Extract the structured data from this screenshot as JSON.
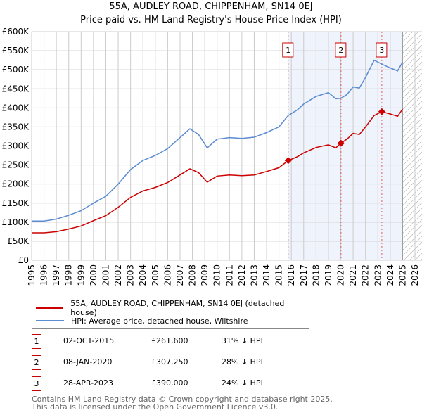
{
  "chart_data": {
    "type": "line",
    "title": "55A, AUDLEY ROAD, CHIPPENHAM, SN14 0EJ",
    "subtitle": "Price paid vs. HM Land Registry's House Price Index (HPI)",
    "xlim": [
      1995,
      2026
    ],
    "ylim": [
      0,
      600000
    ],
    "x_ticks": [
      "1995",
      "1996",
      "1997",
      "1998",
      "1999",
      "2000",
      "2001",
      "2002",
      "2003",
      "2004",
      "2005",
      "2006",
      "2007",
      "2008",
      "2009",
      "2010",
      "2011",
      "2012",
      "2013",
      "2014",
      "2015",
      "2016",
      "2017",
      "2018",
      "2019",
      "2020",
      "2021",
      "2022",
      "2023",
      "2024",
      "2025",
      "2026"
    ],
    "y_ticks": [
      {
        "v": 0,
        "l": "£0"
      },
      {
        "v": 50000,
        "l": "£50K"
      },
      {
        "v": 100000,
        "l": "£100K"
      },
      {
        "v": 150000,
        "l": "£150K"
      },
      {
        "v": 200000,
        "l": "£200K"
      },
      {
        "v": 250000,
        "l": "£250K"
      },
      {
        "v": 300000,
        "l": "£300K"
      },
      {
        "v": 350000,
        "l": "£350K"
      },
      {
        "v": 400000,
        "l": "£400K"
      },
      {
        "v": 450000,
        "l": "£450K"
      },
      {
        "v": 500000,
        "l": "£500K"
      },
      {
        "v": 550000,
        "l": "£550K"
      },
      {
        "v": 600000,
        "l": "£600K"
      }
    ],
    "grid": true,
    "series": [
      {
        "name": "HPI: Average price, detached house, Wiltshire",
        "color": "#5b8bd0",
        "x": [
          1995,
          1996,
          1997,
          1998,
          1999,
          2000,
          2001,
          2002,
          2003,
          2004,
          2005,
          2006,
          2007,
          2007.8,
          2008.5,
          2009.2,
          2010,
          2011,
          2012,
          2013,
          2014,
          2015,
          2015.75,
          2016.5,
          2017,
          2018,
          2019,
          2019.6,
          2020,
          2020.5,
          2021,
          2021.5,
          2022,
          2022.7,
          2023.3,
          2024,
          2024.6,
          2025
        ],
        "y": [
          103000,
          103000,
          108000,
          118000,
          130000,
          150000,
          168000,
          200000,
          238000,
          262000,
          275000,
          293000,
          322000,
          345000,
          330000,
          295000,
          318000,
          322000,
          320000,
          323000,
          335000,
          350000,
          380000,
          395000,
          410000,
          430000,
          440000,
          424000,
          425000,
          435000,
          455000,
          452000,
          480000,
          525000,
          515000,
          505000,
          497000,
          520000
        ]
      },
      {
        "name": "55A, AUDLEY ROAD, CHIPPENHAM, SN14 0EJ (detached house)",
        "color": "#cc0000",
        "x": [
          1995,
          1996,
          1997,
          1998,
          1999,
          2000,
          2001,
          2002,
          2003,
          2004,
          2005,
          2006,
          2007,
          2007.8,
          2008.5,
          2009.2,
          2010,
          2011,
          2012,
          2013,
          2014,
          2015,
          2015.75,
          2016.5,
          2017,
          2018,
          2019,
          2019.6,
          2020,
          2020.5,
          2021,
          2021.5,
          2022,
          2022.7,
          2023.3,
          2024,
          2024.6,
          2025
        ],
        "y": [
          72000,
          72000,
          75000,
          82000,
          90000,
          104000,
          117000,
          139000,
          165000,
          182000,
          191000,
          204000,
          224000,
          240000,
          230000,
          205000,
          221000,
          224000,
          222000,
          224000,
          233000,
          243000,
          261600,
          272000,
          282000,
          296000,
          303000,
          295000,
          307250,
          318000,
          333000,
          330000,
          350000,
          380000,
          390000,
          384000,
          378000,
          397000
        ]
      }
    ],
    "sales": [
      {
        "n": "1",
        "x": 2015.75,
        "y": 261600,
        "date": "02-OCT-2015",
        "price": "£261,600",
        "hpi": "31% ↓ HPI"
      },
      {
        "n": "2",
        "x": 2020.02,
        "y": 307250,
        "date": "08-JAN-2020",
        "price": "£307,250",
        "hpi": "28% ↓ HPI"
      },
      {
        "n": "3",
        "x": 2023.32,
        "y": 390000,
        "date": "28-APR-2023",
        "price": "£390,000",
        "hpi": "24% ↓ HPI"
      }
    ],
    "shaded_range": [
      2015.75,
      2025
    ],
    "forecast_from": 2025
  },
  "footer": {
    "line1": "Contains HM Land Registry data © Crown copyright and database right 2025.",
    "line2": "This data is licensed under the Open Government Licence v3.0."
  }
}
